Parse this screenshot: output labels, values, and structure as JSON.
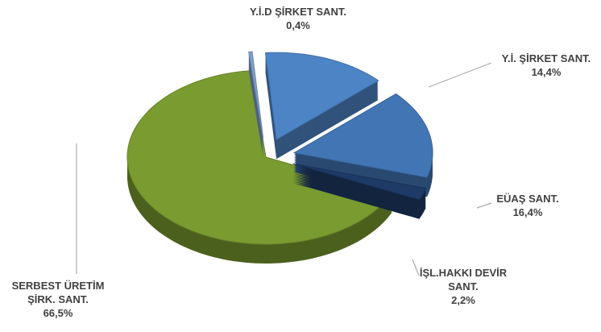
{
  "chart_data": {
    "type": "pie",
    "categories": [
      "Y.İ.D  ŞİRKET SANT.",
      "Y.İ. ŞİRKET SANT.",
      "EÜAŞ SANT.",
      "İŞL.HAKKI DEVİR SANT.",
      "SERBEST ÜRETİM ŞİRK. SANT."
    ],
    "values": [
      0.4,
      14.4,
      16.4,
      2.2,
      66.5
    ],
    "value_labels": [
      "0,4%",
      "14,4%",
      "16,4%",
      "2,2%",
      "66,5%"
    ],
    "colors": [
      "#7f9fc8",
      "#4d84c6",
      "#4275b4",
      "#1e3a66",
      "#7a9b30"
    ]
  }
}
